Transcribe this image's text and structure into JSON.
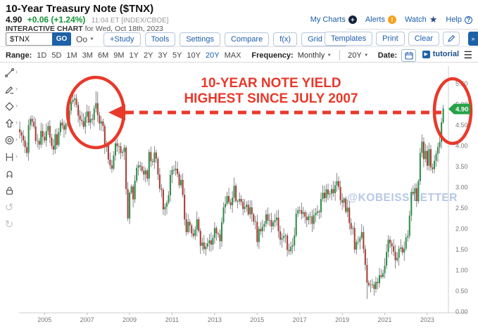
{
  "header": {
    "title": "10-Year Treasury Note ($TNX)",
    "price": "4.90",
    "change": "+0.06 (+1.24%)",
    "quote_time": "11:04 ET [INDEX/CBOE]",
    "chart_label": "INTERACTIVE CHART",
    "chart_date": "for Wed, Oct 18th, 2023",
    "links": [
      "My Charts",
      "Alerts",
      "Watch",
      "Help"
    ]
  },
  "toolbar": {
    "symbol": "$TNX",
    "go_label": "GO",
    "chart_type_label": "Oo",
    "buttons": [
      "+Study",
      "Tools",
      "Settings",
      "Compare",
      "f(x)",
      "Grid View"
    ],
    "right_buttons": [
      "Templates",
      "Print",
      "Clear"
    ]
  },
  "range_bar": {
    "label": "Range:",
    "ranges": [
      "1D",
      "5D",
      "1M",
      "3M",
      "6M",
      "9M",
      "1Y",
      "2Y",
      "3Y",
      "5Y",
      "10Y",
      "20Y",
      "MAX"
    ],
    "active_range": "20Y",
    "frequency_label": "Frequency:",
    "frequency_value": "Monthly",
    "duration_value": "20Y",
    "date_label": "Date:",
    "tutorial_label": "tutorial"
  },
  "sidebar": {
    "tools": [
      "trendline-tool",
      "annotation-tool",
      "shapes-tool",
      "arrow-tool",
      "circles-tool",
      "measure-tool",
      "magnet-tool",
      "lock-tool",
      "undo-button",
      "redo-button"
    ]
  },
  "annotation": {
    "line1": "10-YEAR NOTE YIELD",
    "line2": "HIGHEST SINCE JULY 2007",
    "color": "#e8392b"
  },
  "watermark": "@KOBEISSILETTER",
  "watermark_color": "#b7c8e6",
  "price_badge": {
    "value": "4.90",
    "color": "#27a248"
  },
  "chart_data": {
    "type": "candlestick",
    "symbol": "$TNX",
    "title": "10-Year Treasury Note yield, 20-year monthly candles",
    "frequency": "monthly",
    "start": "2003-11",
    "end": "2023-10",
    "last_price": 4.9,
    "first_open": 4.4,
    "ylim": [
      0,
      5.9
    ],
    "y_ticks": [
      0.0,
      0.5,
      1.0,
      1.5,
      2.0,
      2.5,
      3.0,
      3.5,
      4.0,
      4.5,
      5.0,
      5.5
    ],
    "x_tick_years": [
      2005,
      2007,
      2009,
      2011,
      2013,
      2015,
      2017,
      2019,
      2021,
      2023
    ],
    "up_color": "#2f8f4b",
    "down_color": "#a84138",
    "closes": [
      4.33,
      4.25,
      4.13,
      3.97,
      3.83,
      4.5,
      4.65,
      4.58,
      4.47,
      4.12,
      4.12,
      4.03,
      4.36,
      4.22,
      4.13,
      4.36,
      4.48,
      4.2,
      4.0,
      3.91,
      4.28,
      4.02,
      4.33,
      4.56,
      4.49,
      4.39,
      4.53,
      4.55,
      4.85,
      5.06,
      5.11,
      5.14,
      4.99,
      4.73,
      4.63,
      4.6,
      4.46,
      4.7,
      4.83,
      4.56,
      4.65,
      4.63,
      4.9,
      5.03,
      4.74,
      4.54,
      4.59,
      4.48,
      3.97,
      4.04,
      3.67,
      3.53,
      3.45,
      3.77,
      4.06,
      3.99,
      3.99,
      3.83,
      3.85,
      3.96,
      2.96,
      2.25,
      2.87,
      3.02,
      2.71,
      3.16,
      3.47,
      3.53,
      3.5,
      3.4,
      3.31,
      3.41,
      3.21,
      3.85,
      3.63,
      3.61,
      3.84,
      3.69,
      3.31,
      2.97,
      2.94,
      2.47,
      2.53,
      2.63,
      2.81,
      3.3,
      3.42,
      3.41,
      3.45,
      3.32,
      3.05,
      3.18,
      2.82,
      2.23,
      1.92,
      2.17,
      2.08,
      1.89,
      1.83,
      1.98,
      2.23,
      1.95,
      1.59,
      1.67,
      1.51,
      1.57,
      1.65,
      1.72,
      1.62,
      1.78,
      2.02,
      1.89,
      1.87,
      1.7,
      2.16,
      2.52,
      2.6,
      2.79,
      2.64,
      2.57,
      2.75,
      3.04,
      2.67,
      2.66,
      2.72,
      2.65,
      2.48,
      2.53,
      2.58,
      2.35,
      2.52,
      2.35,
      2.18,
      2.17,
      1.68,
      2.0,
      1.94,
      2.05,
      2.12,
      2.35,
      2.2,
      2.21,
      2.06,
      2.16,
      2.21,
      2.27,
      1.94,
      1.74,
      1.78,
      1.83,
      1.84,
      1.49,
      1.46,
      1.57,
      1.6,
      1.84,
      2.37,
      2.45,
      2.45,
      2.36,
      2.4,
      2.29,
      2.21,
      2.3,
      2.3,
      2.12,
      2.33,
      2.38,
      2.42,
      2.4,
      2.72,
      2.87,
      2.74,
      2.95,
      2.83,
      2.85,
      2.96,
      2.86,
      3.05,
      3.15,
      3.01,
      2.69,
      2.63,
      2.73,
      2.41,
      2.51,
      2.14,
      2.0,
      2.02,
      1.5,
      1.68,
      1.69,
      1.78,
      1.92,
      1.51,
      1.13,
      0.7,
      0.64,
      0.65,
      0.66,
      0.55,
      0.72,
      0.69,
      0.88,
      0.84,
      0.93,
      1.11,
      1.44,
      1.74,
      1.65,
      1.58,
      1.45,
      1.24,
      1.3,
      1.52,
      1.55,
      1.43,
      1.52,
      1.79,
      1.83,
      2.32,
      2.89,
      2.85,
      2.98,
      2.67,
      3.15,
      3.83,
      4.1,
      3.68,
      3.88,
      3.52,
      3.92,
      3.48,
      3.44,
      3.64,
      3.81,
      3.97,
      4.09,
      4.57,
      4.9
    ],
    "wick_overrides": {
      "31": {
        "high": 5.25
      },
      "43": {
        "high": 5.32
      },
      "44": {
        "high": 5.3
      },
      "196": {
        "low": 0.31
      },
      "239": {
        "high": 4.99,
        "low": 4.53
      }
    }
  }
}
